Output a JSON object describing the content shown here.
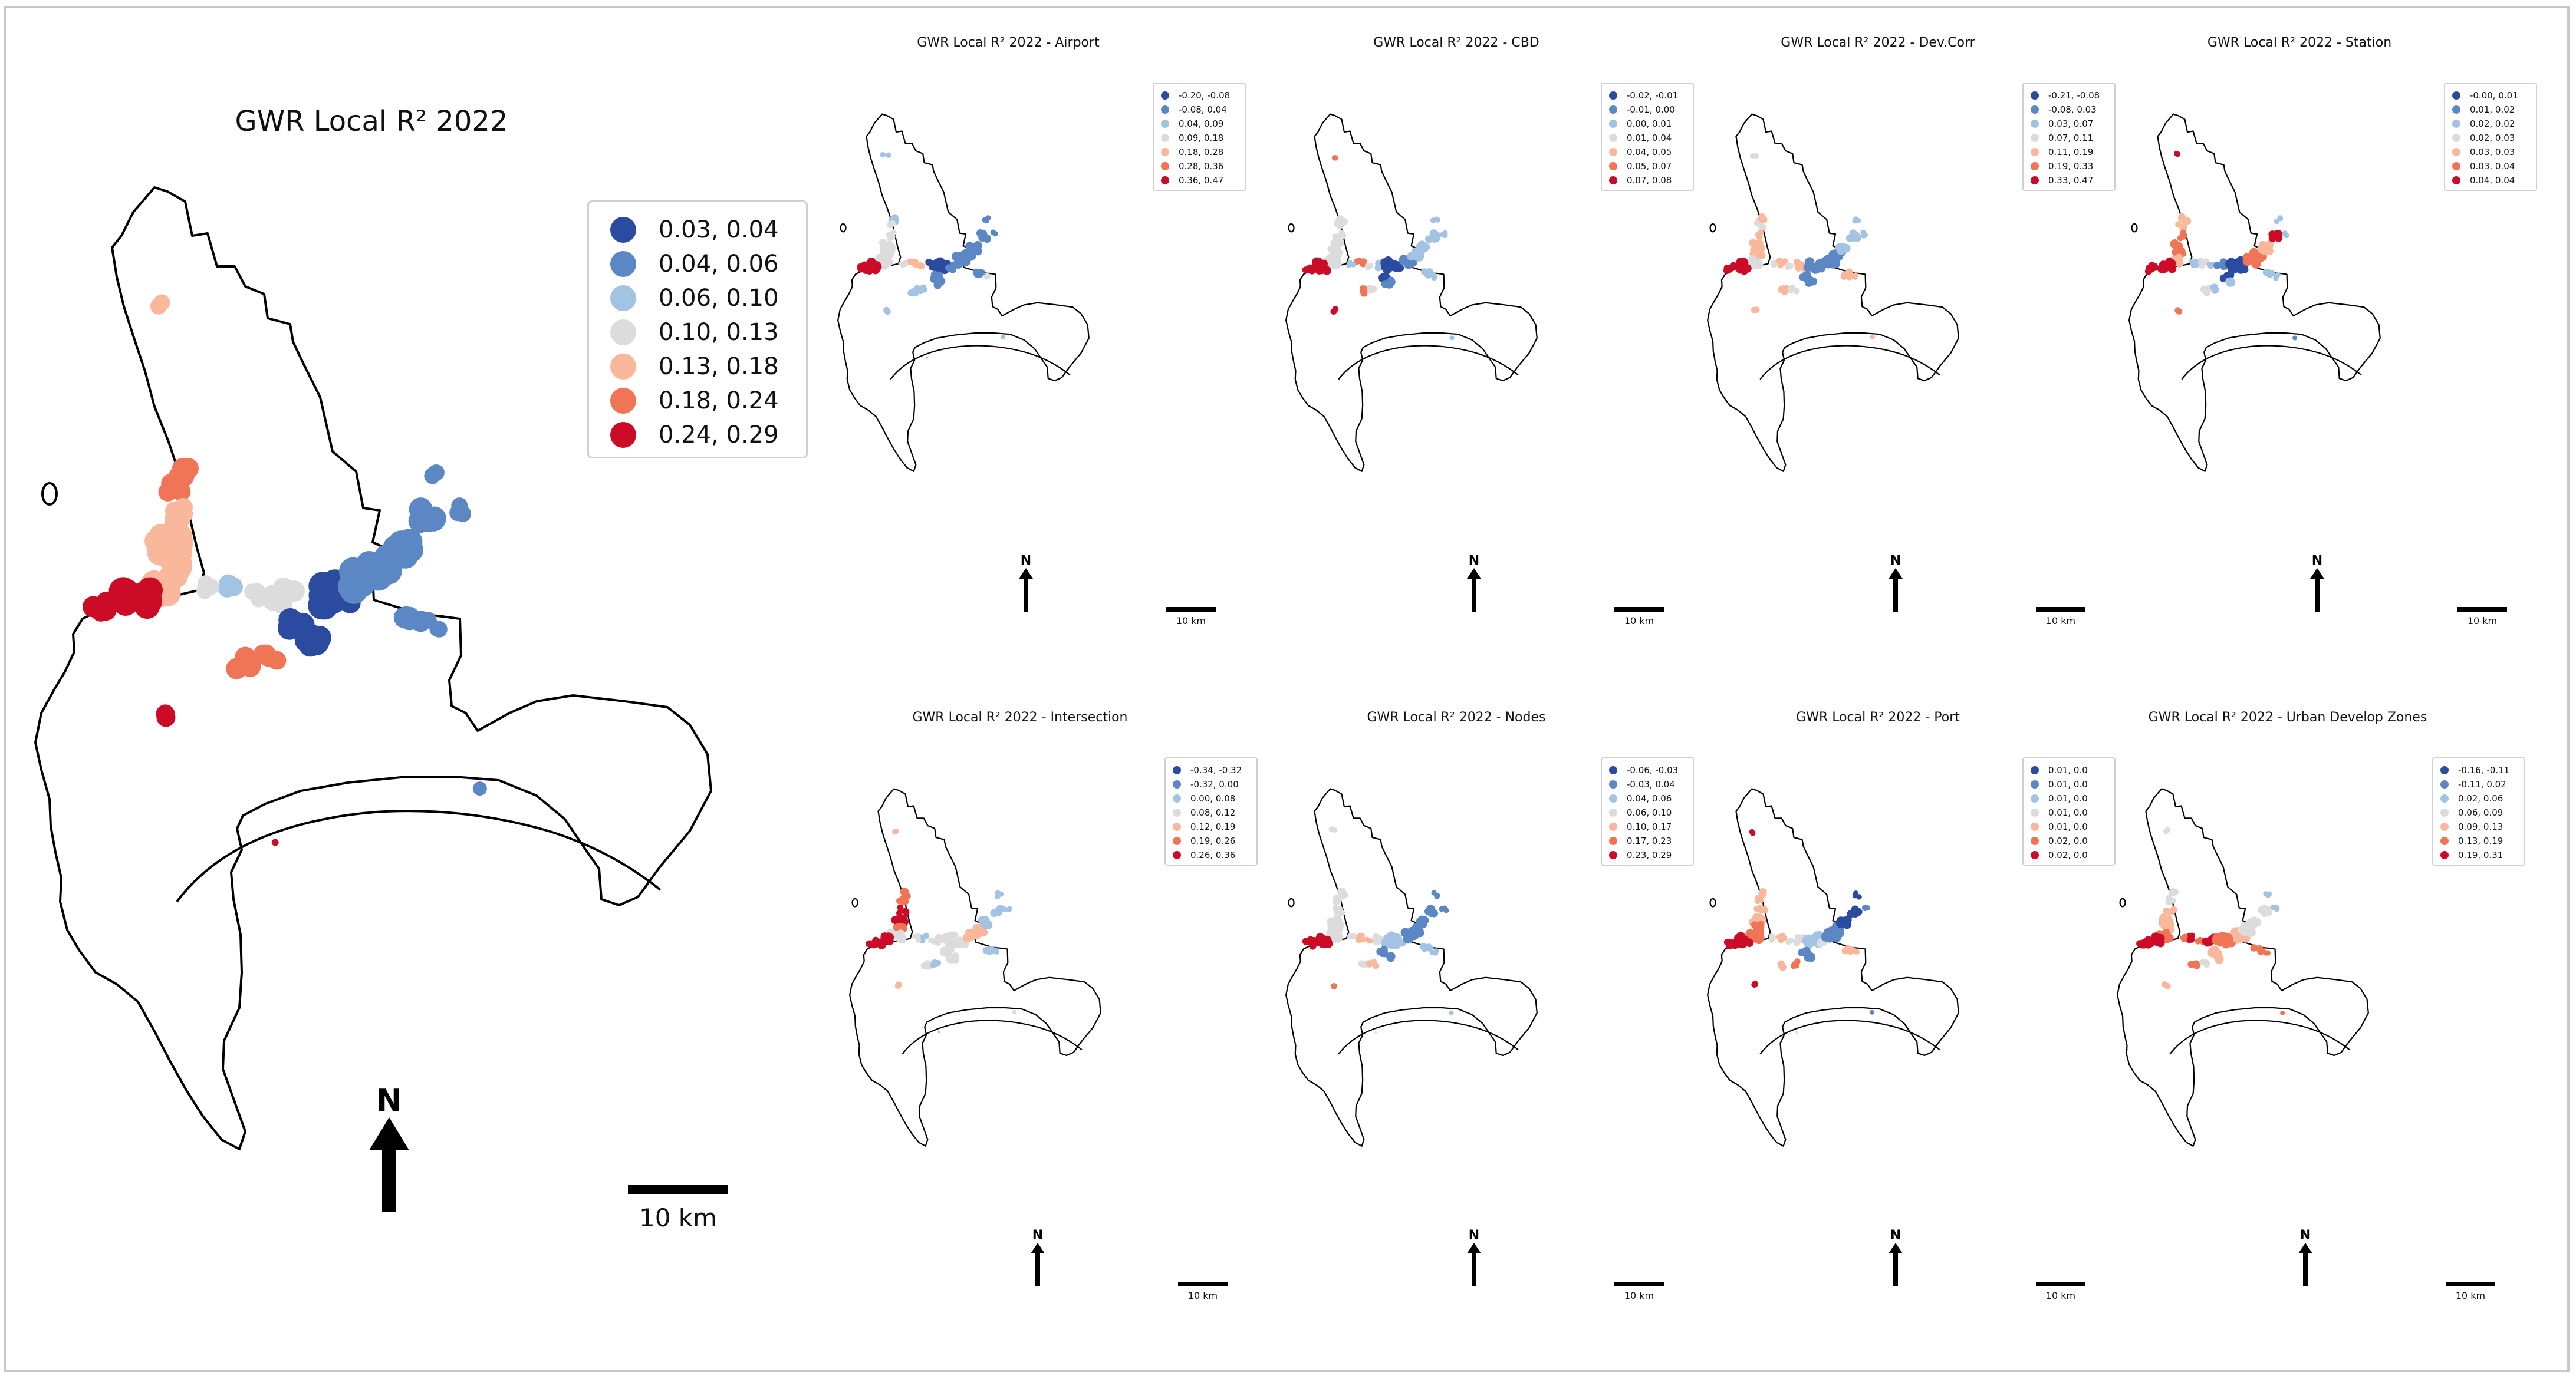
{
  "colors": {
    "c1": "#2b4ba1",
    "c2": "#5b87c4",
    "c3": "#a3c3e2",
    "c4": "#dcdcdc",
    "c5": "#f9b89b",
    "c6": "#f07456",
    "c7": "#cc0c26"
  },
  "icons": {
    "north_arrow": "north-arrow-icon",
    "scale_bar": "scale-bar-icon",
    "legend_marker": "filled-circle"
  },
  "main": {
    "title": "GWR Local R² 2022",
    "legend": [
      "0.03, 0.04",
      "0.04, 0.06",
      "0.06, 0.10",
      "0.10, 0.13",
      "0.13, 0.18",
      "0.18, 0.24",
      "0.24, 0.29"
    ],
    "north": "N",
    "scale": "10 km"
  },
  "panels": [
    {
      "title": "GWR Local R² 2022 - Airport",
      "legend": [
        "-0.20, -0.08",
        "-0.08, 0.04",
        "0.04, 0.09",
        "0.09, 0.18",
        "0.18, 0.28",
        "0.28, 0.36",
        "0.36, 0.47"
      ],
      "north": "N",
      "scale": "10 km"
    },
    {
      "title": "GWR Local R² 2022 - CBD",
      "legend": [
        "-0.02, -0.01",
        "-0.01, 0.00",
        "0.00, 0.01",
        "0.01, 0.04",
        "0.04, 0.05",
        "0.05, 0.07",
        "0.07, 0.08"
      ],
      "north": "N",
      "scale": "10 km"
    },
    {
      "title": "GWR Local R² 2022 - Dev.Corr",
      "legend": [
        "-0.21, -0.08",
        "-0.08, 0.03",
        "0.03, 0.07",
        "0.07, 0.11",
        "0.11, 0.19",
        "0.19, 0.33",
        "0.33, 0.47"
      ],
      "north": "N",
      "scale": "10 km"
    },
    {
      "title": "GWR Local R² 2022 - Station",
      "legend": [
        "-0.00, 0.01",
        "0.01, 0.02",
        "0.02, 0.02",
        "0.02, 0.03",
        "0.03, 0.03",
        "0.03, 0.04",
        "0.04, 0.04"
      ],
      "north": "N",
      "scale": "10 km"
    },
    {
      "title": "GWR Local R² 2022 - Intersection",
      "legend": [
        "-0.34, -0.32",
        "-0.32, 0.00",
        "0.00, 0.08",
        "0.08, 0.12",
        "0.12, 0.19",
        "0.19, 0.26",
        "0.26, 0.36"
      ],
      "north": "N",
      "scale": "10 km"
    },
    {
      "title": "GWR Local R² 2022 - Nodes",
      "legend": [
        "-0.06, -0.03",
        "-0.03, 0.04",
        "0.04, 0.06",
        "0.06, 0.10",
        "0.10, 0.17",
        "0.17, 0.23",
        "0.23, 0.29"
      ],
      "north": "N",
      "scale": "10 km"
    },
    {
      "title": "GWR Local R² 2022 - Port",
      "legend": [
        "0.01, 0.0",
        "0.01, 0.0",
        "0.01, 0.0",
        "0.01, 0.0",
        "0.01, 0.0",
        "0.02, 0.0",
        "0.02, 0.0"
      ],
      "north": "N",
      "scale": "10 km"
    },
    {
      "title": "GWR Local R² 2022 - Urban Develop Zones",
      "legend": [
        "-0.16, -0.11",
        "-0.11, 0.02",
        "0.02, 0.06",
        "0.06, 0.09",
        "0.09, 0.13",
        "0.13, 0.19",
        "0.19, 0.31"
      ],
      "north": "N",
      "scale": "10 km"
    }
  ]
}
